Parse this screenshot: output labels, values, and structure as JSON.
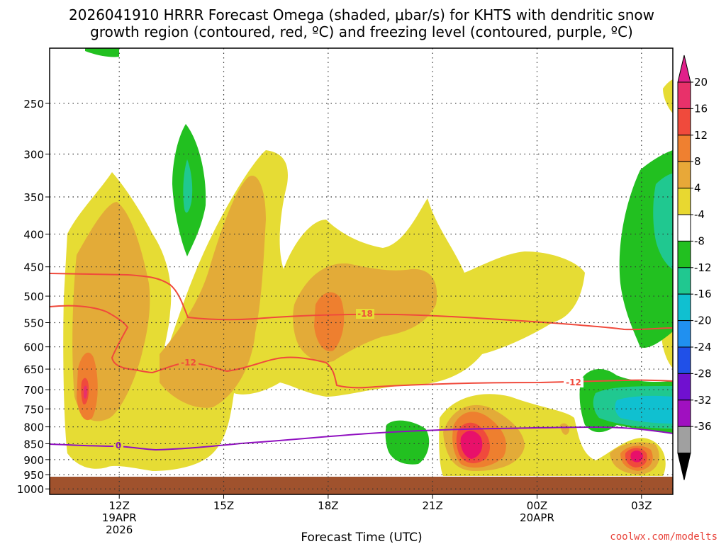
{
  "chart_data": {
    "type": "heatmap",
    "title_line1": "2026041910 HRRR Forecast Omega (shaded, μbar/s) for KHTS with dendritic snow",
    "title_line2": "growth region (contoured, red, ºC) and freezing level (contoured, purple, ºC)",
    "xlabel": "Forecast Time (UTC)",
    "ylabel": "",
    "y_ticks": [
      "250",
      "300",
      "350",
      "400",
      "450",
      "500",
      "550",
      "600",
      "650",
      "700",
      "750",
      "800",
      "850",
      "900",
      "950",
      "1000"
    ],
    "y_values": [
      250,
      300,
      350,
      400,
      450,
      500,
      550,
      600,
      650,
      700,
      750,
      800,
      850,
      900,
      950,
      1000
    ],
    "ylim": [
      1000,
      200
    ],
    "x_ticks": [
      {
        "label": "12Z",
        "sub1": "19APR",
        "sub2": "2026",
        "hour": 12
      },
      {
        "label": "15Z",
        "sub1": "",
        "sub2": "",
        "hour": 15
      },
      {
        "label": "18Z",
        "sub1": "",
        "sub2": "",
        "hour": 18
      },
      {
        "label": "21Z",
        "sub1": "",
        "sub2": "",
        "hour": 21
      },
      {
        "label": "00Z",
        "sub1": "20APR",
        "sub2": "",
        "hour": 24
      },
      {
        "label": "03Z",
        "sub1": "",
        "sub2": "",
        "hour": 27
      }
    ],
    "xlim_hours": [
      10,
      27.9
    ],
    "colorbar": {
      "labels": [
        "20",
        "16",
        "12",
        "8",
        "4",
        "-4",
        "-8",
        "-12",
        "-16",
        "-20",
        "-24",
        "-28",
        "-32",
        "-36"
      ],
      "colors": [
        "#e8316a",
        "#f04a3c",
        "#ef8030",
        "#e8a838",
        "#e8d830",
        "#ffffff",
        "#22c020",
        "#20c890",
        "#10c0d0",
        "#2090f0",
        "#2050e8",
        "#7010d0",
        "#a010c0",
        "#a0a0a0"
      ],
      "top_arrow_color": "#e0208a",
      "bottom_arrow_color": "#000000"
    },
    "contours": {
      "dgz_labels": [
        "-18",
        "-12",
        "-12"
      ],
      "freezing_label": "0",
      "dgz_color": "#f04a3c",
      "freezing_color": "#9010c0"
    },
    "ground_color": "#a0522d",
    "credit": "coolwx.com/modelts"
  }
}
